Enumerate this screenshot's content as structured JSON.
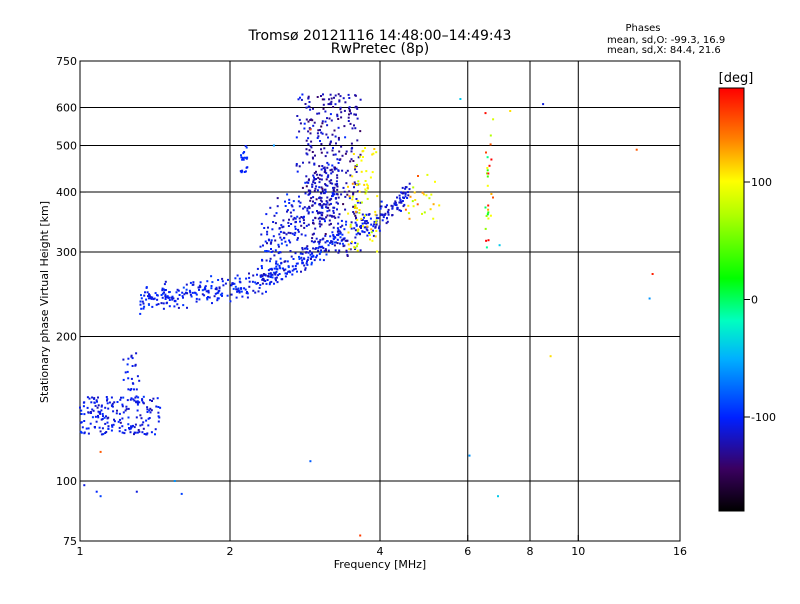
{
  "title_line1": "Tromsø 20121116 14:48:00–14:49:43",
  "title_line2": "RwPretec (8p)",
  "stats": {
    "heading": "Phases",
    "o_line": "mean, sd,O: -99.3, 16.9",
    "x_line": "mean, sd,X:  84.4, 21.6"
  },
  "colorbar": {
    "unit": "[deg]",
    "ticks": [
      {
        "value": 100,
        "label": "100"
      },
      {
        "value": 0,
        "label": "0"
      },
      {
        "value": -100,
        "label": "-100"
      }
    ],
    "range": [
      -180,
      180
    ]
  },
  "chart_data": {
    "type": "scatter",
    "xlabel": "Frequency [MHz]",
    "ylabel": "Stationary phase Virtual Height [km]",
    "xscale": "log",
    "yscale": "log",
    "xlim": [
      1,
      16
    ],
    "ylim": [
      75,
      750
    ],
    "xticks": [
      1,
      2,
      4,
      6,
      8,
      10,
      16
    ],
    "yticks": [
      75,
      100,
      200,
      300,
      400,
      500,
      600,
      750
    ],
    "xgrid": [
      2,
      4,
      6,
      8,
      10
    ],
    "ygrid": [
      100,
      200,
      300,
      400,
      500,
      600
    ],
    "clusters": [
      {
        "kind": "band",
        "f": [
          1.32,
          1.5,
          1.75,
          2.0,
          2.3,
          2.6,
          2.9,
          3.2,
          3.45
        ],
        "h": [
          238,
          241,
          246,
          252,
          262,
          277,
          295,
          315,
          335
        ],
        "spread": 0.03,
        "phase": -105,
        "pspread": 8,
        "n": 380
      },
      {
        "kind": "band",
        "f": [
          2.3,
          2.5,
          2.7,
          2.9,
          3.1,
          3.3
        ],
        "h": [
          290,
          320,
          350,
          380,
          400,
          410
        ],
        "spread": 0.09,
        "phase": -112,
        "pspread": 10,
        "n": 260
      },
      {
        "kind": "cols",
        "f": [
          2.9,
          3.05,
          3.18,
          3.3,
          3.45,
          3.58
        ],
        "hmin": 290,
        "hmax": 640,
        "jit": 0.012,
        "phase": -125,
        "pspread": 10,
        "n": 320
      },
      {
        "kind": "band",
        "f": [
          3.55,
          3.8,
          4.1,
          4.4,
          4.6
        ],
        "h": [
          330,
          345,
          360,
          380,
          420
        ],
        "spread": 0.03,
        "phase": -112,
        "pspread": 8,
        "n": 130
      },
      {
        "kind": "box",
        "f": [
          3.45,
          3.95
        ],
        "h": [
          300,
          500
        ],
        "phase": 100,
        "pspread": 12,
        "n": 80
      },
      {
        "kind": "box",
        "f": [
          4.5,
          5.3
        ],
        "h": [
          350,
          440
        ],
        "phase": 110,
        "pspread": 25,
        "n": 25
      },
      {
        "kind": "box",
        "f": [
          1.0,
          1.45
        ],
        "h": [
          125,
          150
        ],
        "phase": -108,
        "pspread": 8,
        "n": 190
      },
      {
        "kind": "box",
        "f": [
          1.22,
          1.32
        ],
        "h": [
          145,
          185
        ],
        "phase": -108,
        "pspread": 6,
        "n": 28
      },
      {
        "kind": "box",
        "f": [
          2.1,
          2.17
        ],
        "h": [
          440,
          500
        ],
        "phase": -100,
        "pspread": 6,
        "n": 22
      },
      {
        "kind": "box",
        "f": [
          2.72,
          2.92
        ],
        "h": [
          430,
          640
        ],
        "phase": -115,
        "pspread": 8,
        "n": 24
      },
      {
        "kind": "box",
        "f": [
          6.5,
          6.75
        ],
        "h": [
          300,
          600
        ],
        "phase": 90,
        "pspread": 70,
        "n": 28
      }
    ],
    "points": [
      {
        "f": 1.02,
        "h": 98,
        "p": -110
      },
      {
        "f": 1.08,
        "h": 95,
        "p": -100
      },
      {
        "f": 1.1,
        "h": 93,
        "p": -90
      },
      {
        "f": 1.1,
        "h": 115,
        "p": 150
      },
      {
        "f": 1.3,
        "h": 95,
        "p": -110
      },
      {
        "f": 1.55,
        "h": 100,
        "p": -60
      },
      {
        "f": 1.6,
        "h": 94,
        "p": -90
      },
      {
        "f": 2.45,
        "h": 500,
        "p": -60
      },
      {
        "f": 2.9,
        "h": 540,
        "p": 150
      },
      {
        "f": 2.9,
        "h": 110,
        "p": -80
      },
      {
        "f": 3.65,
        "h": 77,
        "p": 160
      },
      {
        "f": 5.8,
        "h": 625,
        "p": -40
      },
      {
        "f": 6.05,
        "h": 113,
        "p": -60
      },
      {
        "f": 6.9,
        "h": 93,
        "p": -40
      },
      {
        "f": 6.95,
        "h": 310,
        "p": -40
      },
      {
        "f": 7.3,
        "h": 590,
        "p": 110
      },
      {
        "f": 8.5,
        "h": 610,
        "p": -110
      },
      {
        "f": 8.8,
        "h": 182,
        "p": 110
      },
      {
        "f": 13.1,
        "h": 490,
        "p": 150
      },
      {
        "f": 13.9,
        "h": 240,
        "p": -60
      },
      {
        "f": 14.1,
        "h": 270,
        "p": 170
      }
    ]
  }
}
